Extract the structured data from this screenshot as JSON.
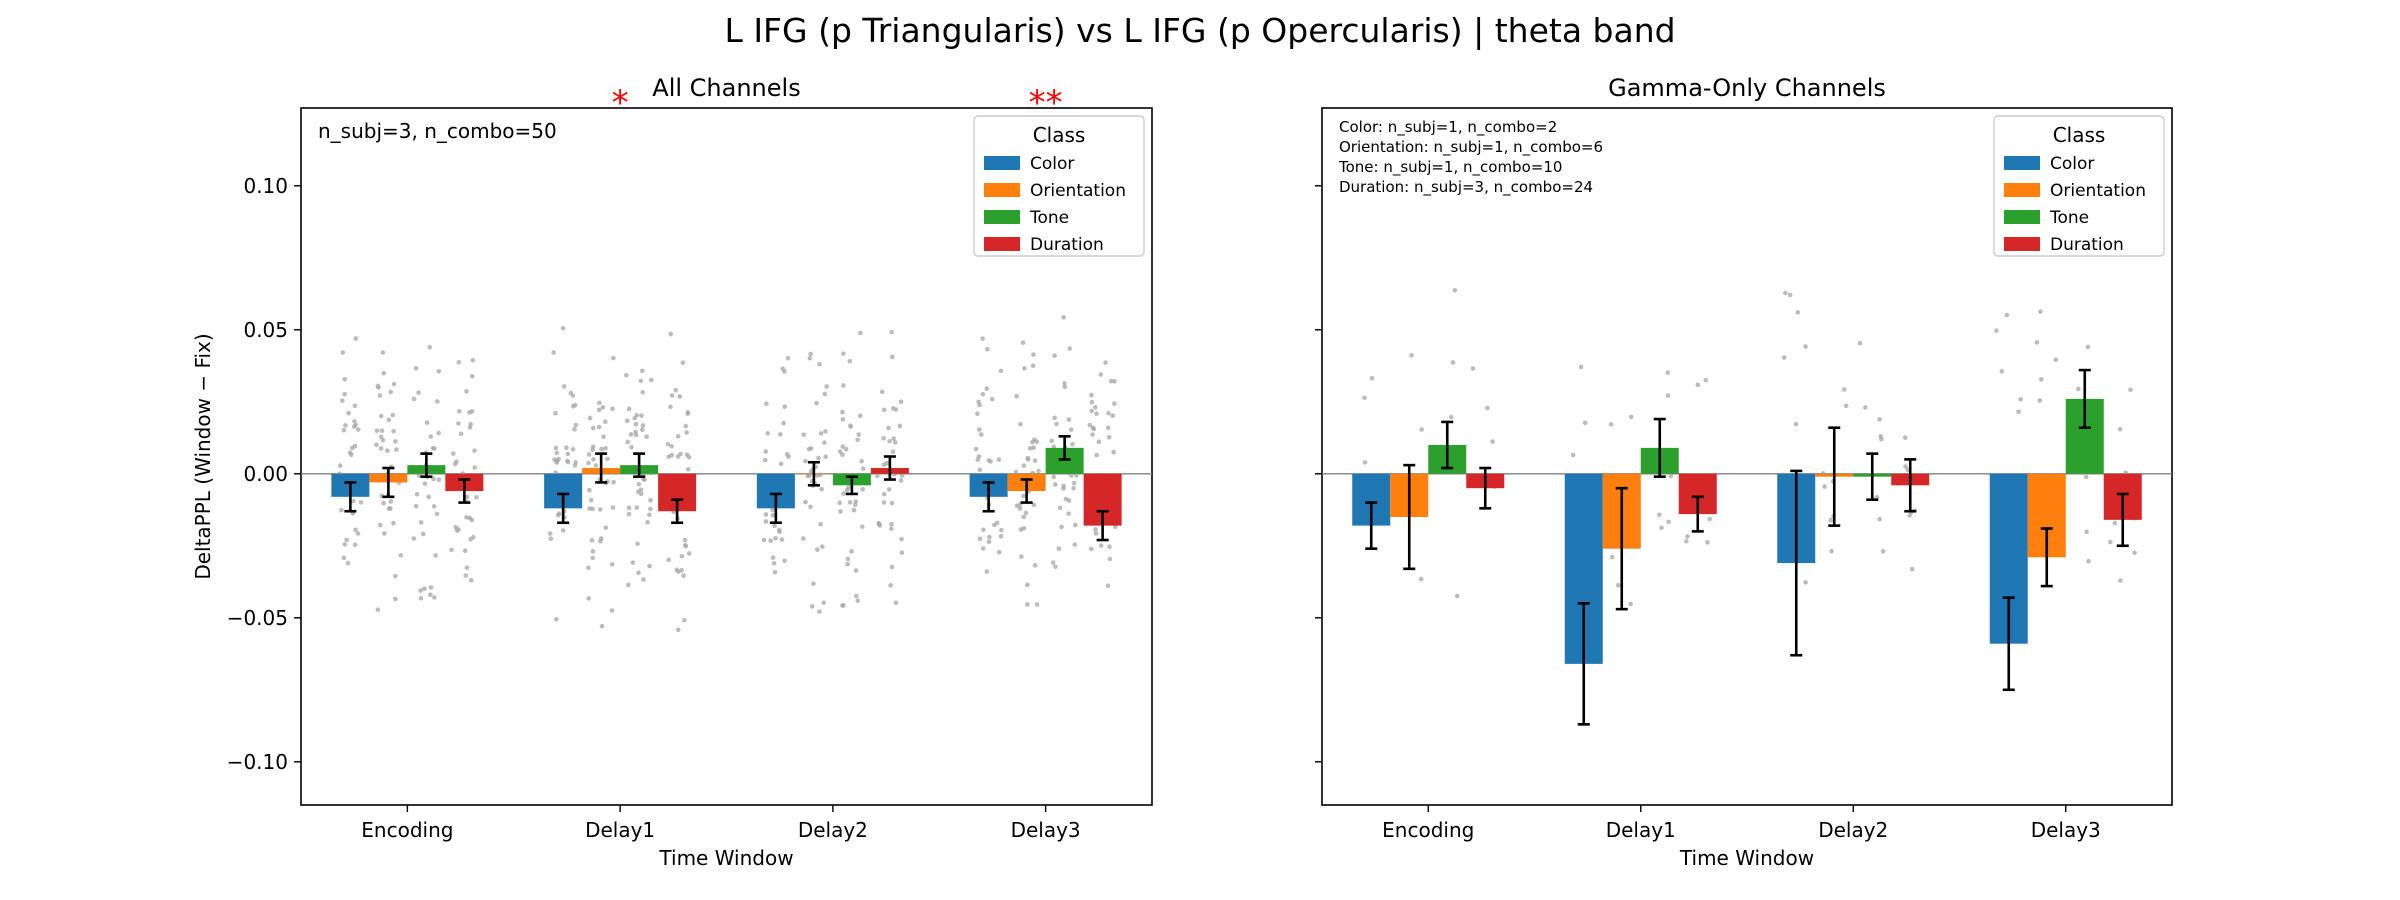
{
  "figure": {
    "suptitle": "L IFG (p Triangularis) vs L IFG (p Opercularis)  |  theta band"
  },
  "colors": {
    "Color": "#1f77b4",
    "Orientation": "#ff7f0e",
    "Tone": "#2ca02c",
    "Duration": "#d62728",
    "scatter": "#a6a6a6",
    "significance": "#ff0000"
  },
  "chart_data": [
    {
      "type": "bar",
      "title": "All Channels",
      "xlabel": "Time Window",
      "ylabel": "DeltaPPL (Window − Fix)",
      "ylim": [
        -0.115,
        0.127
      ],
      "yticks": [
        -0.1,
        -0.05,
        0.0,
        0.05,
        0.1
      ],
      "ytick_labels": [
        "−0.10",
        "−0.05",
        "0.00",
        "0.05",
        "0.10"
      ],
      "categories": [
        "Encoding",
        "Delay1",
        "Delay2",
        "Delay3"
      ],
      "legend": {
        "title": "Class",
        "position": "top-right"
      },
      "annotation": "n_subj=3, n_combo=50",
      "significance": [
        "",
        "*",
        "",
        "**"
      ],
      "series": [
        {
          "name": "Color",
          "values": [
            -0.008,
            -0.012,
            -0.012,
            -0.008
          ],
          "err": [
            0.005,
            0.005,
            0.005,
            0.005
          ]
        },
        {
          "name": "Orientation",
          "values": [
            -0.003,
            0.002,
            0.0,
            -0.006
          ],
          "err": [
            0.005,
            0.005,
            0.004,
            0.004
          ]
        },
        {
          "name": "Tone",
          "values": [
            0.003,
            0.003,
            -0.004,
            0.009
          ],
          "err": [
            0.004,
            0.004,
            0.003,
            0.004
          ]
        },
        {
          "name": "Duration",
          "values": [
            -0.006,
            -0.013,
            0.002,
            -0.018
          ],
          "err": [
            0.004,
            0.004,
            0.004,
            0.005
          ]
        }
      ],
      "scatter_count": [
        36,
        42,
        36,
        36
      ],
      "scatter_spread": 0.03
    },
    {
      "type": "bar",
      "title": "Gamma-Only Channels",
      "xlabel": "Time Window",
      "ylabel": "",
      "ylim": [
        -0.115,
        0.127
      ],
      "yticks": [
        -0.1,
        -0.05,
        0.0,
        0.05,
        0.1
      ],
      "ytick_labels": [
        "",
        "",
        "",
        "",
        ""
      ],
      "categories": [
        "Encoding",
        "Delay1",
        "Delay2",
        "Delay3"
      ],
      "legend": {
        "title": "Class",
        "position": "top-right"
      },
      "annotation": [
        "Color: n_subj=1, n_combo=2",
        "Orientation: n_subj=1, n_combo=6",
        "Tone: n_subj=1, n_combo=10",
        "Duration: n_subj=3, n_combo=24"
      ],
      "significance": [
        "",
        "",
        "",
        ""
      ],
      "series": [
        {
          "name": "Color",
          "values": [
            -0.018,
            -0.066,
            -0.031,
            -0.059
          ],
          "err": [
            0.008,
            0.021,
            0.032,
            0.016
          ]
        },
        {
          "name": "Orientation",
          "values": [
            -0.015,
            -0.026,
            -0.001,
            -0.029
          ],
          "err": [
            0.018,
            0.021,
            0.017,
            0.01
          ]
        },
        {
          "name": "Tone",
          "values": [
            0.01,
            0.009,
            -0.001,
            0.026
          ],
          "err": [
            0.008,
            0.01,
            0.008,
            0.01
          ]
        },
        {
          "name": "Duration",
          "values": [
            -0.005,
            -0.014,
            -0.004,
            -0.016
          ],
          "err": [
            0.007,
            0.006,
            0.009,
            0.009
          ]
        }
      ],
      "scatter_count": [
        4,
        6,
        8,
        10
      ],
      "scatter_spread": 0.04
    }
  ]
}
